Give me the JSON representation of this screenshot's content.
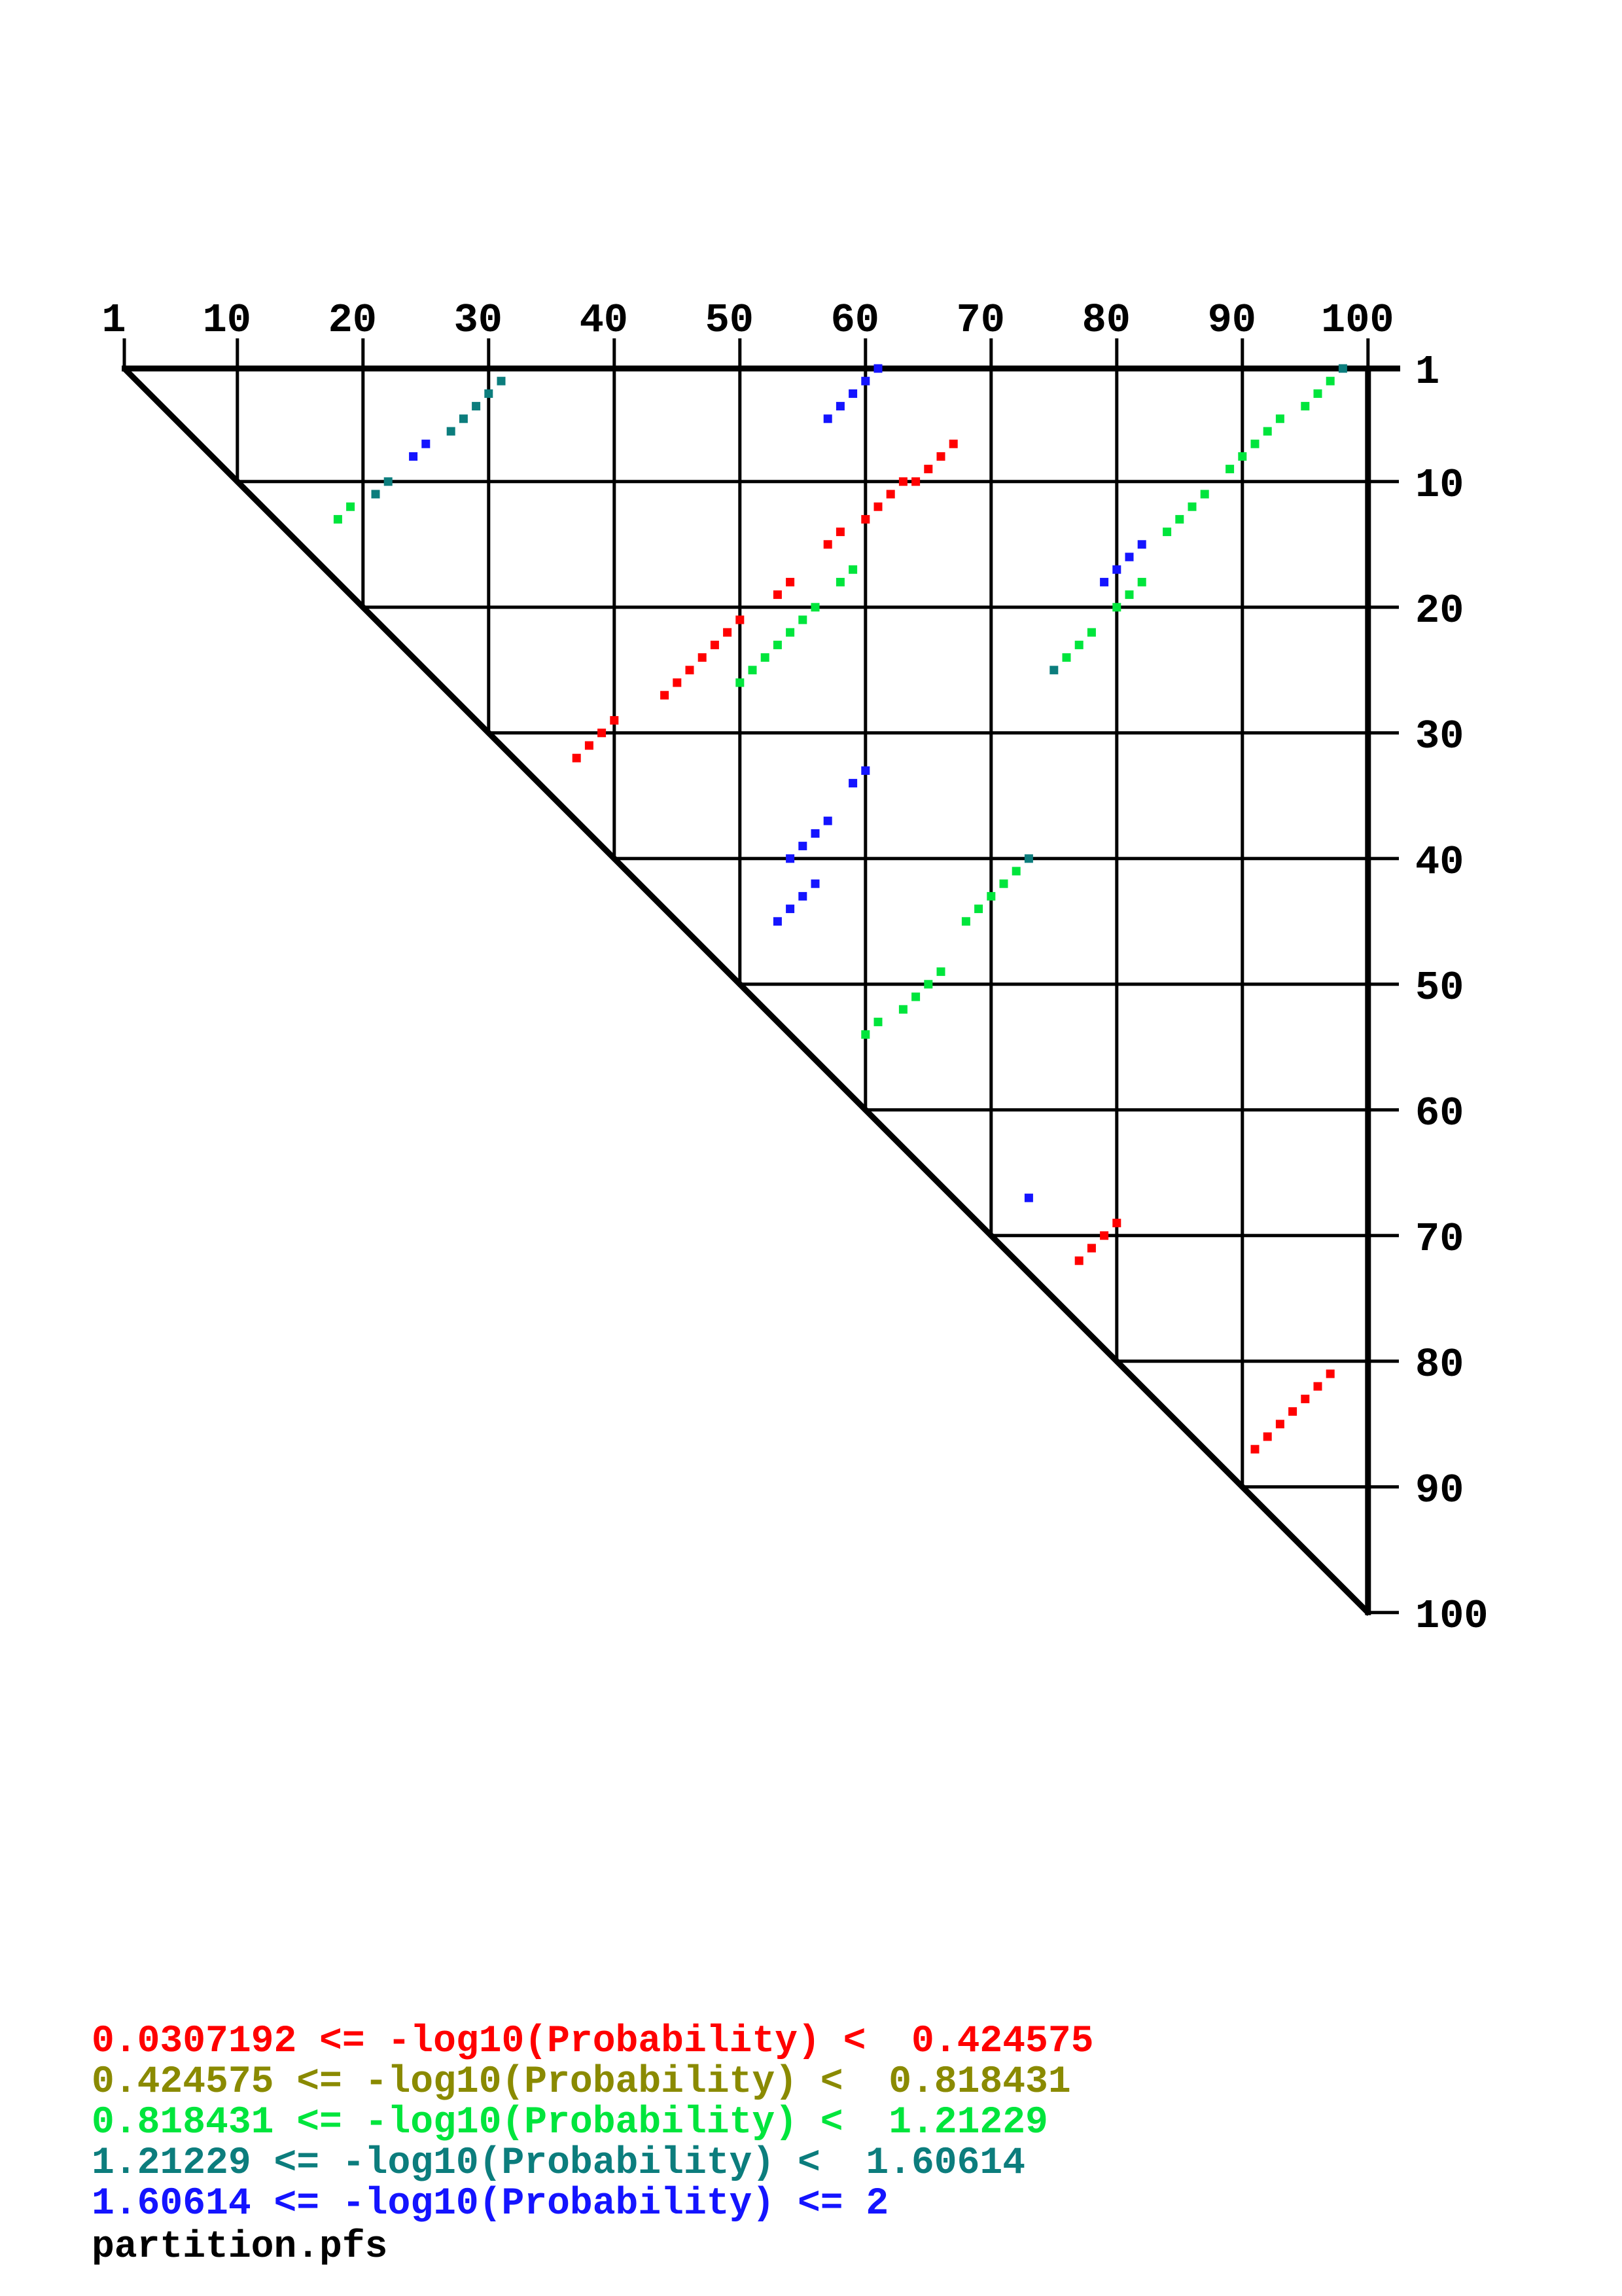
{
  "file_label": "partition.pfs",
  "plot": {
    "x_axis": {
      "ticks": [
        "1",
        "10",
        "20",
        "30",
        "40",
        "50",
        "60",
        "70",
        "80",
        "90",
        "100"
      ]
    },
    "y_axis": {
      "ticks": [
        "1",
        "10",
        "20",
        "30",
        "40",
        "50",
        "60",
        "70",
        "80",
        "90",
        "100"
      ]
    }
  },
  "legend": {
    "entries": [
      {
        "text": "0.0307192 <= -log10(Probability) <  0.424575",
        "color": "#ff0000"
      },
      {
        "text": "0.424575 <= -log10(Probability) <  0.818431",
        "color": "#8a8a00"
      },
      {
        "text": "0.818431 <= -log10(Probability) <  1.21229",
        "color": "#00e53c"
      },
      {
        "text": "1.21229 <= -log10(Probability) <  1.60614",
        "color": "#0c7d7d"
      },
      {
        "text": "1.60614 <= -log10(Probability) <= 2",
        "color": "#1414ff"
      }
    ]
  },
  "chart_data": {
    "type": "scatter",
    "title": "partition.pfs",
    "description": "Triangular base-pair probability dot plot; upper-triangle matrix with nucleotide index 1-100 on both axes; each square marks pair (i,j) colored by -log10(probability) bin.",
    "x_range": [
      1,
      100
    ],
    "y_range": [
      1,
      100
    ],
    "grid": "decade gridlines at 10..90, borders at 1 and 100, diagonal hypotenuse i=j",
    "legend_position": "bottom-left",
    "levels": [
      {
        "level": 1,
        "color": "#ff0000",
        "min": 0.0307192,
        "max": 0.424575,
        "label": "0.0307192 <= -log10(Probability) < 0.424575"
      },
      {
        "level": 2,
        "color": "#8a8a00",
        "min": 0.424575,
        "max": 0.818431,
        "label": "0.424575 <= -log10(Probability) < 0.818431"
      },
      {
        "level": 3,
        "color": "#00e53c",
        "min": 0.818431,
        "max": 1.21229,
        "label": "0.818431 <= -log10(Probability) < 1.21229"
      },
      {
        "level": 4,
        "color": "#0c7d7d",
        "min": 1.21229,
        "max": 1.60614,
        "label": "1.21229 <= -log10(Probability) < 1.60614"
      },
      {
        "level": 5,
        "color": "#1414ff",
        "min": 1.60614,
        "max": 2,
        "label": "1.60614 <= -log10(Probability) <= 2"
      }
    ],
    "points": [
      [
        31,
        2,
        4
      ],
      [
        30,
        3,
        4
      ],
      [
        29,
        4,
        4
      ],
      [
        28,
        5,
        4
      ],
      [
        27,
        6,
        4
      ],
      [
        25,
        7,
        5
      ],
      [
        24,
        8,
        5
      ],
      [
        22,
        10,
        4
      ],
      [
        21,
        11,
        4
      ],
      [
        19,
        12,
        3
      ],
      [
        18,
        13,
        3
      ],
      [
        61,
        1,
        5
      ],
      [
        60,
        2,
        5
      ],
      [
        59,
        3,
        5
      ],
      [
        58,
        4,
        5
      ],
      [
        57,
        5,
        5
      ],
      [
        67,
        7,
        1
      ],
      [
        66,
        8,
        1
      ],
      [
        65,
        9,
        1
      ],
      [
        64,
        10,
        1
      ],
      [
        63,
        10,
        1
      ],
      [
        62,
        11,
        1
      ],
      [
        61,
        12,
        1
      ],
      [
        60,
        13,
        1
      ],
      [
        58,
        14,
        1
      ],
      [
        57,
        15,
        1
      ],
      [
        54,
        18,
        1
      ],
      [
        53,
        19,
        1
      ],
      [
        50,
        21,
        1
      ],
      [
        49,
        22,
        1
      ],
      [
        59,
        17,
        3
      ],
      [
        58,
        18,
        3
      ],
      [
        56,
        20,
        3
      ],
      [
        55,
        21,
        3
      ],
      [
        54,
        22,
        3
      ],
      [
        53,
        23,
        3
      ],
      [
        52,
        24,
        3
      ],
      [
        51,
        25,
        3
      ],
      [
        50,
        26,
        3
      ],
      [
        48,
        23,
        1
      ],
      [
        47,
        24,
        1
      ],
      [
        46,
        25,
        1
      ],
      [
        45,
        26,
        1
      ],
      [
        44,
        27,
        1
      ],
      [
        40,
        29,
        1
      ],
      [
        39,
        30,
        1
      ],
      [
        38,
        31,
        1
      ],
      [
        37,
        32,
        1
      ],
      [
        60,
        33,
        5
      ],
      [
        59,
        34,
        5
      ],
      [
        57,
        37,
        5
      ],
      [
        56,
        38,
        5
      ],
      [
        55,
        39,
        5
      ],
      [
        54,
        40,
        5
      ],
      [
        56,
        42,
        5
      ],
      [
        55,
        43,
        5
      ],
      [
        54,
        44,
        5
      ],
      [
        53,
        45,
        5
      ],
      [
        73,
        40,
        4
      ],
      [
        72,
        41,
        3
      ],
      [
        71,
        42,
        3
      ],
      [
        70,
        43,
        3
      ],
      [
        69,
        44,
        3
      ],
      [
        68,
        45,
        3
      ],
      [
        66,
        49,
        3
      ],
      [
        65,
        50,
        3
      ],
      [
        64,
        51,
        3
      ],
      [
        63,
        52,
        3
      ],
      [
        61,
        53,
        3
      ],
      [
        60,
        54,
        3
      ],
      [
        98,
        1,
        4
      ],
      [
        97,
        2,
        3
      ],
      [
        96,
        3,
        3
      ],
      [
        95,
        4,
        3
      ],
      [
        93,
        5,
        3
      ],
      [
        92,
        6,
        3
      ],
      [
        91,
        7,
        3
      ],
      [
        90,
        8,
        3
      ],
      [
        89,
        9,
        3
      ],
      [
        87,
        11,
        3
      ],
      [
        86,
        12,
        3
      ],
      [
        85,
        13,
        3
      ],
      [
        84,
        14,
        3
      ],
      [
        82,
        15,
        5
      ],
      [
        81,
        16,
        5
      ],
      [
        80,
        17,
        5
      ],
      [
        79,
        18,
        5
      ],
      [
        82,
        18,
        3
      ],
      [
        81,
        19,
        3
      ],
      [
        80,
        20,
        3
      ],
      [
        78,
        22,
        3
      ],
      [
        77,
        23,
        3
      ],
      [
        76,
        24,
        3
      ],
      [
        75,
        25,
        4
      ],
      [
        73,
        67,
        5
      ],
      [
        80,
        69,
        1
      ],
      [
        79,
        70,
        1
      ],
      [
        78,
        71,
        1
      ],
      [
        77,
        72,
        1
      ],
      [
        97,
        81,
        1
      ],
      [
        96,
        82,
        1
      ],
      [
        95,
        83,
        1
      ],
      [
        94,
        84,
        1
      ],
      [
        93,
        85,
        1
      ],
      [
        92,
        86,
        1
      ],
      [
        91,
        87,
        1
      ]
    ]
  }
}
